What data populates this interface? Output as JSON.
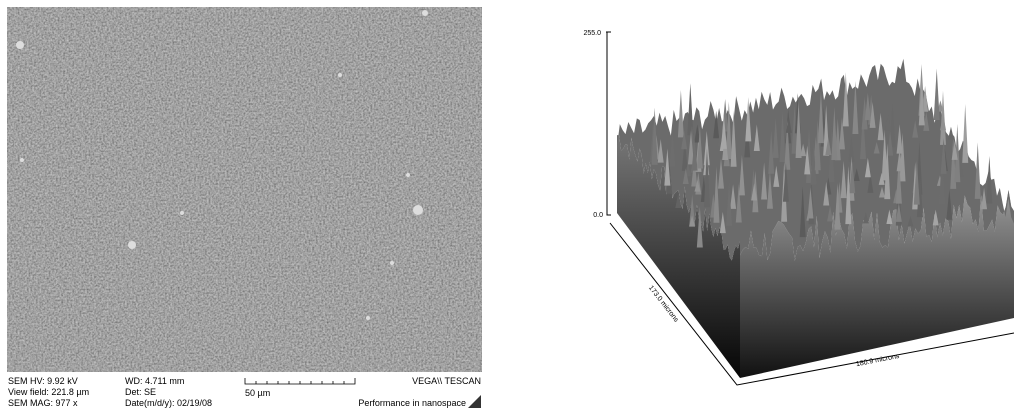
{
  "sem_panel": {
    "hv": "SEM HV: 9.92 kV",
    "view_field": "View field: 221.8 µm",
    "mag": "SEM MAG: 977 x",
    "wd": "WD: 4.711 mm",
    "det": "Det: SE",
    "date": "Date(m/d/y): 02/19/08",
    "scale_bar": "50 µm",
    "brand": "VEGA\\\\ TESCAN",
    "slogan": "Performance in nanospace"
  },
  "surface_plot": {
    "z_top": "255.0",
    "z_bottom": "0.0",
    "y_axis": "173.0 microns",
    "x_axis": "180.9 microns"
  }
}
